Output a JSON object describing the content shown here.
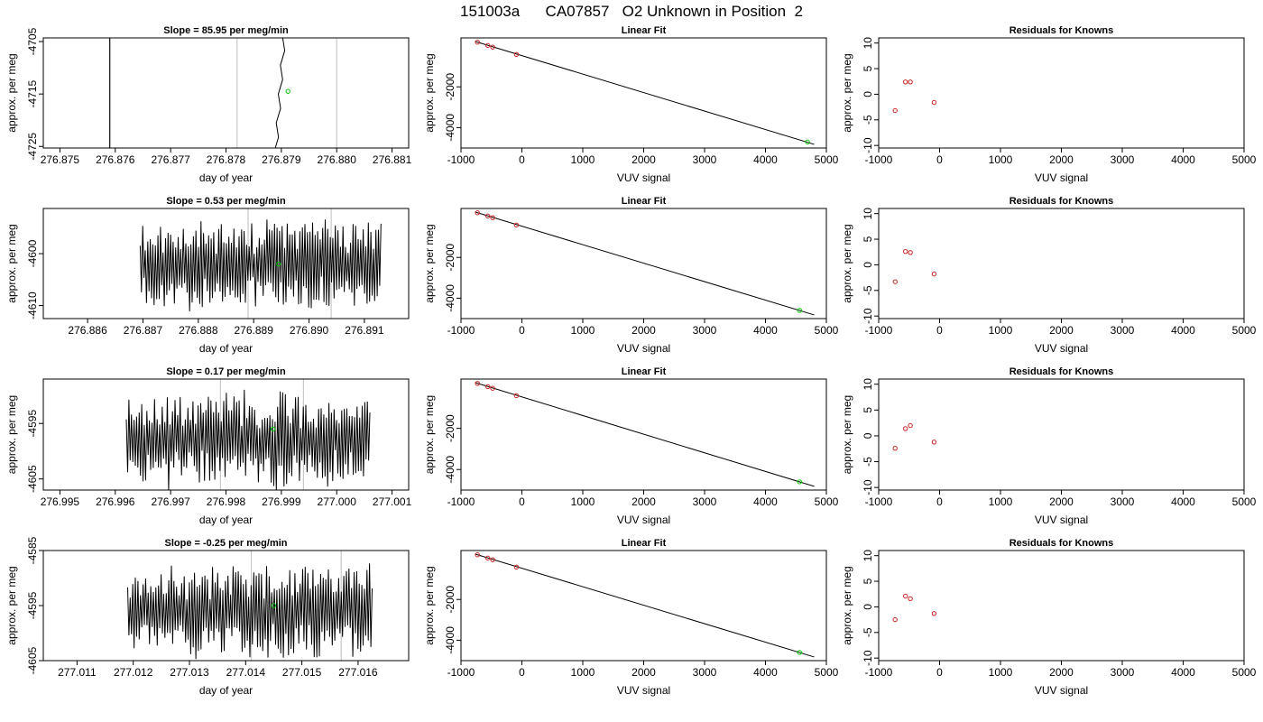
{
  "figure": {
    "title": "151003a      CA07857   O2 Unknown in Position  2"
  },
  "colors": {
    "trace": "#000000",
    "unknown_point": "#00cc00",
    "known_points": "#cc2222",
    "window_lines": "#c8c8c8",
    "fit_line": "#000000"
  },
  "chart_data": [
    {
      "type": "line",
      "row": 0,
      "col": 0,
      "title": "Slope =  85.95  per meg/min",
      "xlabel": "day of year",
      "ylabel": "approx. per meg",
      "xlim": [
        276.8747,
        276.8813
      ],
      "ylim": [
        -4725.3,
        -4704.3
      ],
      "xticks": [
        276.875,
        276.876,
        276.877,
        276.878,
        276.879,
        276.88,
        276.881
      ],
      "xtick_labels": [
        "276.875",
        "276.876",
        "276.877",
        "276.878",
        "276.879",
        "276.880",
        "276.881"
      ],
      "yticks": [
        -4705,
        -4715,
        -4725
      ],
      "ytick_labels": [
        "-4705",
        "-4715",
        "-4725"
      ],
      "window_lines_x": [
        276.8782,
        276.88
      ],
      "dark_lines_x": [
        276.8759
      ],
      "trace": {
        "style": "steep",
        "x_start": 276.8789,
        "x_end": 276.87905,
        "y_start": -4726,
        "y_end": -4704
      },
      "unknown_point": {
        "x": 276.87912,
        "y": -4714.5
      }
    },
    {
      "type": "scatter",
      "row": 0,
      "col": 1,
      "title": "Linear Fit",
      "xlabel": "VUV signal",
      "ylabel": "approx. per meg",
      "xlim": [
        -1000,
        5000
      ],
      "ylim": [
        -5000,
        400
      ],
      "xticks": [
        -1000,
        0,
        1000,
        2000,
        3000,
        4000,
        5000
      ],
      "xtick_labels": [
        "-1000",
        "0",
        "1000",
        "2000",
        "3000",
        "4000",
        "5000"
      ],
      "yticks": [
        -2000,
        -4000
      ],
      "ytick_labels": [
        "-2000",
        "-4000"
      ],
      "knowns": {
        "x": [
          -730,
          -560,
          -480,
          -90
        ],
        "y": [
          190,
          30,
          -50,
          -410
        ]
      },
      "unknown": {
        "x": 4690,
        "y": -4705
      },
      "fit_line": {
        "x": [
          -770,
          4800
        ],
        "y": [
          230,
          -4820
        ]
      }
    },
    {
      "type": "scatter",
      "row": 0,
      "col": 2,
      "title": "Residuals for Knowns",
      "xlabel": "VUV signal",
      "ylabel": "approx. per meg",
      "xlim": [
        -1000,
        5000
      ],
      "ylim": [
        -10.5,
        11
      ],
      "xticks": [
        -1000,
        0,
        1000,
        2000,
        3000,
        4000,
        5000
      ],
      "xtick_labels": [
        "-1000",
        "0",
        "1000",
        "2000",
        "3000",
        "4000",
        "5000"
      ],
      "yticks": [
        10,
        5,
        0,
        -5,
        -10
      ],
      "ytick_labels": [
        "10",
        "5",
        "0",
        "-5",
        "-10"
      ],
      "knowns": {
        "x": [
          -730,
          -560,
          -480,
          -90
        ],
        "y": [
          -3.2,
          2.4,
          2.4,
          -1.6
        ]
      }
    },
    {
      "type": "line",
      "row": 1,
      "col": 0,
      "title": "Slope =  0.53  per meg/min",
      "xlabel": "day of year",
      "ylabel": "approx. per meg",
      "xlim": [
        276.8852,
        276.8918
      ],
      "ylim": [
        -4612.5,
        -4591.3
      ],
      "xticks": [
        276.886,
        276.887,
        276.888,
        276.889,
        276.89,
        276.891
      ],
      "xtick_labels": [
        "276.886",
        "276.887",
        "276.888",
        "276.889",
        "276.890",
        "276.891"
      ],
      "yticks": [
        -4600,
        -4610
      ],
      "ytick_labels": [
        "-4600",
        "-4610"
      ],
      "window_lines_x": [
        276.8889,
        276.8904
      ],
      "trace": {
        "style": "noise",
        "seed": 11,
        "x_start": 276.88695,
        "x_end": 276.8913,
        "center": -4602,
        "amp": 7.5
      },
      "unknown_point": {
        "x": 276.88945,
        "y": -4602
      }
    },
    {
      "type": "scatter",
      "row": 1,
      "col": 1,
      "title": "Linear Fit",
      "xlabel": "VUV signal",
      "ylabel": "approx. per meg",
      "xlim": [
        -1000,
        5000
      ],
      "ylim": [
        -5000,
        400
      ],
      "xticks": [
        -1000,
        0,
        1000,
        2000,
        3000,
        4000,
        5000
      ],
      "xtick_labels": [
        "-1000",
        "0",
        "1000",
        "2000",
        "3000",
        "4000",
        "5000"
      ],
      "yticks": [
        -2000,
        -4000
      ],
      "ytick_labels": [
        "-2000",
        "-4000"
      ],
      "knowns": {
        "x": [
          -730,
          -560,
          -480,
          -90
        ],
        "y": [
          190,
          30,
          -50,
          -410
        ]
      },
      "unknown": {
        "x": 4560,
        "y": -4600
      },
      "fit_line": {
        "x": [
          -770,
          4800
        ],
        "y": [
          230,
          -4820
        ]
      }
    },
    {
      "type": "scatter",
      "row": 1,
      "col": 2,
      "title": "Residuals for Knowns",
      "xlabel": "VUV signal",
      "ylabel": "approx. per meg",
      "xlim": [
        -1000,
        5000
      ],
      "ylim": [
        -10.5,
        11
      ],
      "xticks": [
        -1000,
        0,
        1000,
        2000,
        3000,
        4000,
        5000
      ],
      "xtick_labels": [
        "-1000",
        "0",
        "1000",
        "2000",
        "3000",
        "4000",
        "5000"
      ],
      "yticks": [
        10,
        5,
        0,
        -5,
        -10
      ],
      "ytick_labels": [
        "10",
        "5",
        "0",
        "-5",
        "-10"
      ],
      "knowns": {
        "x": [
          -730,
          -560,
          -480,
          -90
        ],
        "y": [
          -3.3,
          2.6,
          2.4,
          -1.8
        ]
      }
    },
    {
      "type": "line",
      "row": 2,
      "col": 0,
      "title": "Slope =  0.17  per meg/min",
      "xlabel": "day of year",
      "ylabel": "approx. per meg",
      "xlim": [
        276.9947,
        277.0013
      ],
      "ylim": [
        -4607,
        -4587
      ],
      "xticks": [
        276.995,
        276.996,
        276.997,
        276.998,
        276.999,
        277.0,
        277.001
      ],
      "xtick_labels": [
        "276.995",
        "276.996",
        "276.997",
        "276.998",
        "276.999",
        "277.000",
        "277.001"
      ],
      "yticks": [
        -4595,
        -4605
      ],
      "ytick_labels": [
        "-4595",
        "-4605"
      ],
      "window_lines_x": [
        276.9979,
        276.9994
      ],
      "trace": {
        "style": "noise",
        "seed": 23,
        "x_start": 276.9962,
        "x_end": 277.0006,
        "center": -4598,
        "amp": 7.5
      },
      "unknown_point": {
        "x": 276.99885,
        "y": -4596
      }
    },
    {
      "type": "scatter",
      "row": 2,
      "col": 1,
      "title": "Linear Fit",
      "xlabel": "VUV signal",
      "ylabel": "approx. per meg",
      "xlim": [
        -1000,
        5000
      ],
      "ylim": [
        -5000,
        400
      ],
      "xticks": [
        -1000,
        0,
        1000,
        2000,
        3000,
        4000,
        5000
      ],
      "xtick_labels": [
        "-1000",
        "0",
        "1000",
        "2000",
        "3000",
        "4000",
        "5000"
      ],
      "yticks": [
        -2000,
        -4000
      ],
      "ytick_labels": [
        "-2000",
        "-4000"
      ],
      "knowns": {
        "x": [
          -730,
          -560,
          -480,
          -90
        ],
        "y": [
          190,
          30,
          -50,
          -410
        ]
      },
      "unknown": {
        "x": 4560,
        "y": -4600
      },
      "fit_line": {
        "x": [
          -770,
          4800
        ],
        "y": [
          230,
          -4820
        ]
      }
    },
    {
      "type": "scatter",
      "row": 2,
      "col": 2,
      "title": "Residuals for Knowns",
      "xlabel": "VUV signal",
      "ylabel": "approx. per meg",
      "xlim": [
        -1000,
        5000
      ],
      "ylim": [
        -10.5,
        11
      ],
      "xticks": [
        -1000,
        0,
        1000,
        2000,
        3000,
        4000,
        5000
      ],
      "xtick_labels": [
        "-1000",
        "0",
        "1000",
        "2000",
        "3000",
        "4000",
        "5000"
      ],
      "yticks": [
        10,
        5,
        0,
        -5,
        -10
      ],
      "ytick_labels": [
        "10",
        "5",
        "0",
        "-5",
        "-10"
      ],
      "knowns": {
        "x": [
          -730,
          -560,
          -480,
          -90
        ],
        "y": [
          -2.4,
          1.4,
          2.0,
          -1.2
        ]
      }
    },
    {
      "type": "line",
      "row": 3,
      "col": 0,
      "title": "Slope =  -0.25  per meg/min",
      "xlabel": "day of year",
      "ylabel": "approx. per meg",
      "xlim": [
        277.0104,
        277.0169
      ],
      "ylim": [
        -4605,
        -4585
      ],
      "xticks": [
        277.011,
        277.012,
        277.013,
        277.014,
        277.015,
        277.016
      ],
      "xtick_labels": [
        "277.011",
        "277.012",
        "277.013",
        "277.014",
        "277.015",
        "277.016"
      ],
      "yticks": [
        -4585,
        -4595,
        -4605
      ],
      "ytick_labels": [
        "-4585",
        "-4595",
        "-4605"
      ],
      "window_lines_x": [
        277.0141,
        277.0157
      ],
      "trace": {
        "style": "noise",
        "seed": 37,
        "x_start": 277.0119,
        "x_end": 277.01625,
        "center": -4596,
        "amp": 7.5
      },
      "unknown_point": {
        "x": 277.0145,
        "y": -4595
      }
    },
    {
      "type": "scatter",
      "row": 3,
      "col": 1,
      "title": "Linear Fit",
      "xlabel": "VUV signal",
      "ylabel": "approx. per meg",
      "xlim": [
        -1000,
        5000
      ],
      "ylim": [
        -5000,
        400
      ],
      "xticks": [
        -1000,
        0,
        1000,
        2000,
        3000,
        4000,
        5000
      ],
      "xtick_labels": [
        "-1000",
        "0",
        "1000",
        "2000",
        "3000",
        "4000",
        "5000"
      ],
      "yticks": [
        -2000,
        -4000
      ],
      "ytick_labels": [
        "-2000",
        "-4000"
      ],
      "knowns": {
        "x": [
          -730,
          -560,
          -480,
          -90
        ],
        "y": [
          190,
          30,
          -50,
          -410
        ]
      },
      "unknown": {
        "x": 4560,
        "y": -4600
      },
      "fit_line": {
        "x": [
          -770,
          4800
        ],
        "y": [
          230,
          -4820
        ]
      }
    },
    {
      "type": "scatter",
      "row": 3,
      "col": 2,
      "title": "Residuals for Knowns",
      "xlabel": "VUV signal",
      "ylabel": "approx. per meg",
      "xlim": [
        -1000,
        5000
      ],
      "ylim": [
        -10.5,
        11
      ],
      "xticks": [
        -1000,
        0,
        1000,
        2000,
        3000,
        4000,
        5000
      ],
      "xtick_labels": [
        "-1000",
        "0",
        "1000",
        "2000",
        "3000",
        "4000",
        "5000"
      ],
      "yticks": [
        10,
        5,
        0,
        -5,
        -10
      ],
      "ytick_labels": [
        "10",
        "5",
        "0",
        "-5",
        "-10"
      ],
      "knowns": {
        "x": [
          -730,
          -560,
          -480,
          -90
        ],
        "y": [
          -2.5,
          2.1,
          1.6,
          -1.3
        ]
      }
    }
  ]
}
